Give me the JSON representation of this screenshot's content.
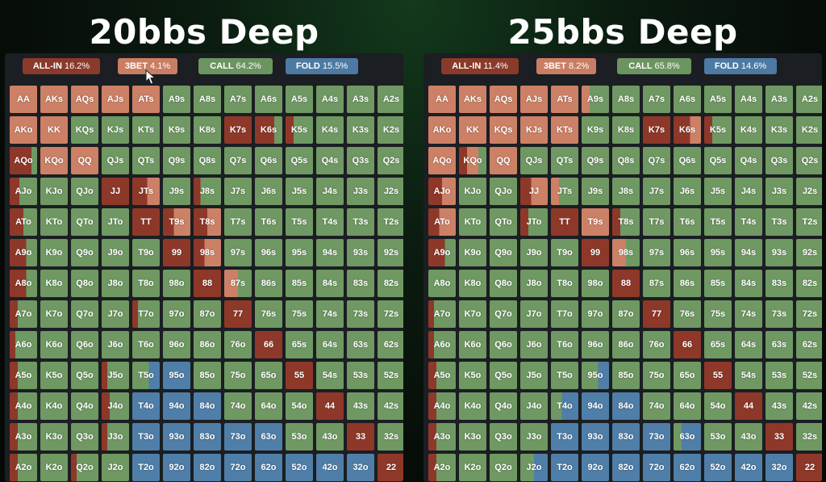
{
  "colors": {
    "allin": "#8e3829",
    "threebet": "#cc8066",
    "call": "#6f9863",
    "fold": "#4f7ea8"
  },
  "panels": [
    {
      "title": "20bbs Deep",
      "legend": {
        "allin": {
          "label": "ALL-IN",
          "value": "16.2%"
        },
        "threebet": {
          "label": "3BET",
          "value": "4.1%"
        },
        "call": {
          "label": "CALL",
          "value": "64.2%"
        },
        "fold": {
          "label": "FOLD",
          "value": "15.5%"
        }
      },
      "hands": [
        [
          "AA",
          "AKs",
          "AQs",
          "AJs",
          "ATs",
          "A9s",
          "A8s",
          "A7s",
          "A6s",
          "A5s",
          "A4s",
          "A3s",
          "A2s"
        ],
        [
          "AKo",
          "KK",
          "KQs",
          "KJs",
          "KTs",
          "K9s",
          "K8s",
          "K7s",
          "K6s",
          "K5s",
          "K4s",
          "K3s",
          "K2s"
        ],
        [
          "AQo",
          "KQo",
          "QQ",
          "QJs",
          "QTs",
          "Q9s",
          "Q8s",
          "Q7s",
          "Q6s",
          "Q5s",
          "Q4s",
          "Q3s",
          "Q2s"
        ],
        [
          "AJo",
          "KJo",
          "QJo",
          "JJ",
          "JTs",
          "J9s",
          "J8s",
          "J7s",
          "J6s",
          "J5s",
          "J4s",
          "J3s",
          "J2s"
        ],
        [
          "ATo",
          "KTo",
          "QTo",
          "JTo",
          "TT",
          "T9s",
          "T8s",
          "T7s",
          "T6s",
          "T5s",
          "T4s",
          "T3s",
          "T2s"
        ],
        [
          "A9o",
          "K9o",
          "Q9o",
          "J9o",
          "T9o",
          "99",
          "98s",
          "97s",
          "96s",
          "95s",
          "94s",
          "93s",
          "92s"
        ],
        [
          "A8o",
          "K8o",
          "Q8o",
          "J8o",
          "T8o",
          "98o",
          "88",
          "87s",
          "86s",
          "85s",
          "84s",
          "83s",
          "82s"
        ],
        [
          "A7o",
          "K7o",
          "Q7o",
          "J7o",
          "T7o",
          "97o",
          "87o",
          "77",
          "76s",
          "75s",
          "74s",
          "73s",
          "72s"
        ],
        [
          "A6o",
          "K6o",
          "Q6o",
          "J6o",
          "T6o",
          "96o",
          "86o",
          "76o",
          "66",
          "65s",
          "64s",
          "63s",
          "62s"
        ],
        [
          "A5o",
          "K5o",
          "Q5o",
          "J5o",
          "T5o",
          "95o",
          "85o",
          "75o",
          "65o",
          "55",
          "54s",
          "53s",
          "52s"
        ],
        [
          "A4o",
          "K4o",
          "Q4o",
          "J4o",
          "T4o",
          "94o",
          "84o",
          "74o",
          "64o",
          "54o",
          "44",
          "43s",
          "42s"
        ],
        [
          "A3o",
          "K3o",
          "Q3o",
          "J3o",
          "T3o",
          "93o",
          "83o",
          "73o",
          "63o",
          "53o",
          "43o",
          "33",
          "32s"
        ],
        [
          "A2o",
          "K2o",
          "Q2o",
          "J2o",
          "T2o",
          "92o",
          "82o",
          "72o",
          "62o",
          "52o",
          "42o",
          "32o",
          "22"
        ]
      ],
      "mix": [
        [
          "R",
          "R",
          "R",
          "R",
          "R",
          "C",
          "C",
          "C",
          "C",
          "C",
          "C",
          "C",
          "C"
        ],
        [
          "R",
          "R",
          "C",
          "C",
          "C",
          "C",
          "C",
          "A",
          "A:0.7,C:0.3",
          "A:0.3,C:0.7",
          "C",
          "C",
          "C"
        ],
        [
          "A:0.8,C:0.2",
          "R",
          "R",
          "C",
          "C",
          "C",
          "C",
          "C",
          "C",
          "C",
          "C",
          "C",
          "C"
        ],
        [
          "A:0.35,C:0.65",
          "C",
          "C",
          "A",
          "A:0.55,R:0.45",
          "C",
          "A:0.25,C:0.75",
          "C",
          "C",
          "C",
          "C",
          "C",
          "C"
        ],
        [
          "A:0.5,C:0.5",
          "C",
          "C",
          "C",
          "A",
          "A:0.4,R:0.6",
          "A:0.5,R:0.5",
          "C",
          "C",
          "C",
          "C",
          "C",
          "C"
        ],
        [
          "A:0.6,C:0.4",
          "C",
          "C",
          "C",
          "C",
          "A",
          "A:0.4,R:0.6",
          "C",
          "C",
          "C",
          "C",
          "C",
          "C"
        ],
        [
          "A:0.6,C:0.4",
          "C",
          "C",
          "C",
          "C",
          "C",
          "A",
          "R:0.5,C:0.5",
          "C",
          "C",
          "C",
          "C",
          "C"
        ],
        [
          "A:0.3,C:0.7",
          "C",
          "C",
          "C",
          "A:0.2,C:0.8",
          "C",
          "C",
          "A",
          "C",
          "C",
          "C",
          "C",
          "C"
        ],
        [
          "A:0.2,C:0.8",
          "C",
          "C",
          "C",
          "C",
          "C",
          "C",
          "C",
          "A",
          "C",
          "C",
          "C",
          "C"
        ],
        [
          "A:0.3,C:0.7",
          "C",
          "C",
          "A:0.2,C:0.8",
          "C:0.6,F:0.4",
          "F",
          "C",
          "C",
          "C",
          "A",
          "C",
          "C",
          "C"
        ],
        [
          "A:0.3,C:0.7",
          "C",
          "C",
          "A:0.3,C:0.7",
          "F",
          "F",
          "F",
          "C",
          "C",
          "C",
          "A",
          "C",
          "C"
        ],
        [
          "A:0.3,C:0.7",
          "C",
          "C",
          "A:0.2,C:0.8",
          "F",
          "F",
          "F",
          "F",
          "F",
          "C",
          "C",
          "A",
          "C"
        ],
        [
          "A:0.3,C:0.7",
          "C",
          "A:0.2,C:0.8",
          "C",
          "F",
          "F",
          "F",
          "F",
          "F",
          "F",
          "F",
          "F",
          "A"
        ]
      ]
    },
    {
      "title": "25bbs Deep",
      "legend": {
        "allin": {
          "label": "ALL-IN",
          "value": "11.4%"
        },
        "threebet": {
          "label": "3BET",
          "value": "8.2%"
        },
        "call": {
          "label": "CALL",
          "value": "65.8%"
        },
        "fold": {
          "label": "FOLD",
          "value": "14.6%"
        }
      },
      "hands": [
        [
          "AA",
          "AKs",
          "AQs",
          "AJs",
          "ATs",
          "A9s",
          "A8s",
          "A7s",
          "A6s",
          "A5s",
          "A4s",
          "A3s",
          "A2s"
        ],
        [
          "AKo",
          "KK",
          "KQs",
          "KJs",
          "KTs",
          "K9s",
          "K8s",
          "K7s",
          "K6s",
          "K5s",
          "K4s",
          "K3s",
          "K2s"
        ],
        [
          "AQo",
          "KQo",
          "QQ",
          "QJs",
          "QTs",
          "Q9s",
          "Q8s",
          "Q7s",
          "Q6s",
          "Q5s",
          "Q4s",
          "Q3s",
          "Q2s"
        ],
        [
          "AJo",
          "KJo",
          "QJo",
          "JJ",
          "JTs",
          "J9s",
          "J8s",
          "J7s",
          "J6s",
          "J5s",
          "J4s",
          "J3s",
          "J2s"
        ],
        [
          "ATo",
          "KTo",
          "QTo",
          "JTo",
          "TT",
          "T9s",
          "T8s",
          "T7s",
          "T6s",
          "T5s",
          "T4s",
          "T3s",
          "T2s"
        ],
        [
          "A9o",
          "K9o",
          "Q9o",
          "J9o",
          "T9o",
          "99",
          "98s",
          "97s",
          "96s",
          "95s",
          "94s",
          "93s",
          "92s"
        ],
        [
          "A8o",
          "K8o",
          "Q8o",
          "J8o",
          "T8o",
          "98o",
          "88",
          "87s",
          "86s",
          "85s",
          "84s",
          "83s",
          "82s"
        ],
        [
          "A7o",
          "K7o",
          "Q7o",
          "J7o",
          "T7o",
          "97o",
          "87o",
          "77",
          "76s",
          "75s",
          "74s",
          "73s",
          "72s"
        ],
        [
          "A6o",
          "K6o",
          "Q6o",
          "J6o",
          "T6o",
          "96o",
          "86o",
          "76o",
          "66",
          "65s",
          "64s",
          "63s",
          "62s"
        ],
        [
          "A5o",
          "K5o",
          "Q5o",
          "J5o",
          "T5o",
          "95o",
          "85o",
          "75o",
          "65o",
          "55",
          "54s",
          "53s",
          "52s"
        ],
        [
          "A4o",
          "K4o",
          "Q4o",
          "J4o",
          "T4o",
          "94o",
          "84o",
          "74o",
          "64o",
          "54o",
          "44",
          "43s",
          "42s"
        ],
        [
          "A3o",
          "K3o",
          "Q3o",
          "J3o",
          "T3o",
          "93o",
          "83o",
          "73o",
          "63o",
          "53o",
          "43o",
          "33",
          "32s"
        ],
        [
          "A2o",
          "K2o",
          "Q2o",
          "J2o",
          "T2o",
          "92o",
          "82o",
          "72o",
          "62o",
          "52o",
          "42o",
          "32o",
          "22"
        ]
      ],
      "mix": [
        [
          "R",
          "R",
          "R",
          "R",
          "R",
          "R:0.3,C:0.7",
          "C",
          "C",
          "C",
          "C",
          "C",
          "C",
          "C"
        ],
        [
          "R",
          "R",
          "R",
          "R",
          "R",
          "C",
          "C",
          "A",
          "A:0.6,R:0.4",
          "A:0.3,C:0.7",
          "C",
          "C",
          "C"
        ],
        [
          "R",
          "A:0.3,R:0.4,C:0.3",
          "R",
          "C",
          "C",
          "C",
          "C",
          "C",
          "C",
          "C",
          "C",
          "C",
          "C"
        ],
        [
          "A:0.5,R:0.5",
          "C",
          "C",
          "A:0.4,R:0.6",
          "R:0.3,C:0.7",
          "C",
          "C",
          "C",
          "C",
          "C",
          "C",
          "C",
          "C"
        ],
        [
          "A:0.4,R:0.6",
          "C",
          "C",
          "A:0.3,C:0.7",
          "A",
          "R",
          "A:0.3,C:0.7",
          "C",
          "C",
          "C",
          "C",
          "C",
          "C"
        ],
        [
          "A:0.6,C:0.4",
          "C",
          "C",
          "C",
          "C",
          "A",
          "R:0.5,C:0.5",
          "C",
          "C",
          "C",
          "C",
          "C",
          "C"
        ],
        [
          "C",
          "C",
          "C",
          "C",
          "C",
          "C",
          "A",
          "C",
          "C",
          "C",
          "C",
          "C",
          "C"
        ],
        [
          "A:0.2,C:0.8",
          "C",
          "C",
          "C",
          "C",
          "C",
          "C",
          "A",
          "C",
          "C",
          "C",
          "C",
          "C"
        ],
        [
          "A:0.2,C:0.8",
          "C",
          "C",
          "C",
          "C",
          "C",
          "C",
          "C",
          "A",
          "C",
          "C",
          "C",
          "C"
        ],
        [
          "A:0.3,C:0.7",
          "C",
          "C",
          "C",
          "C",
          "C:0.6,F:0.4",
          "C",
          "C",
          "C",
          "A",
          "C",
          "C",
          "C"
        ],
        [
          "A:0.3,C:0.7",
          "C",
          "C",
          "C",
          "C:0.4,F:0.6",
          "F",
          "F",
          "C",
          "C",
          "C",
          "A",
          "C",
          "C"
        ],
        [
          "A:0.3,C:0.7",
          "C",
          "C",
          "C",
          "F",
          "F",
          "F",
          "F",
          "C:0.3,F:0.7",
          "C",
          "C",
          "A",
          "C"
        ],
        [
          "A:0.3,C:0.7",
          "C",
          "C",
          "C:0.5,F:0.5",
          "F",
          "F",
          "F",
          "F",
          "F",
          "F",
          "F",
          "F",
          "A"
        ]
      ]
    }
  ]
}
